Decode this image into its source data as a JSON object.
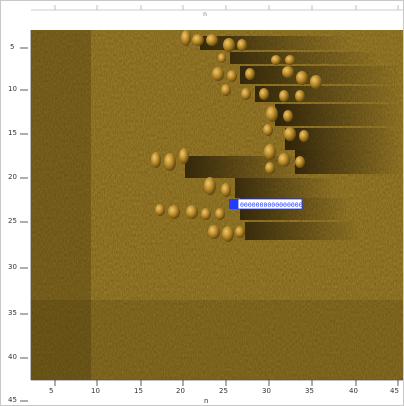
{
  "colors": {
    "background": "#ffffff",
    "sonar_base": "#6b5110",
    "sonar_light": "#a67d1e",
    "sonar_highlight": "#e0b45a",
    "shadow": "#1f1604",
    "marker": "#1f3cff"
  },
  "axes": {
    "y_ticks": [
      "5",
      "10",
      "15",
      "20",
      "25",
      "30",
      "35",
      "40",
      "45"
    ],
    "x_ticks": [
      "5",
      "10",
      "15",
      "20",
      "25",
      "30",
      "35",
      "40",
      "45"
    ],
    "x_label": "n",
    "top_center_label": "n"
  },
  "marker": {
    "label": "0000000000000000"
  }
}
